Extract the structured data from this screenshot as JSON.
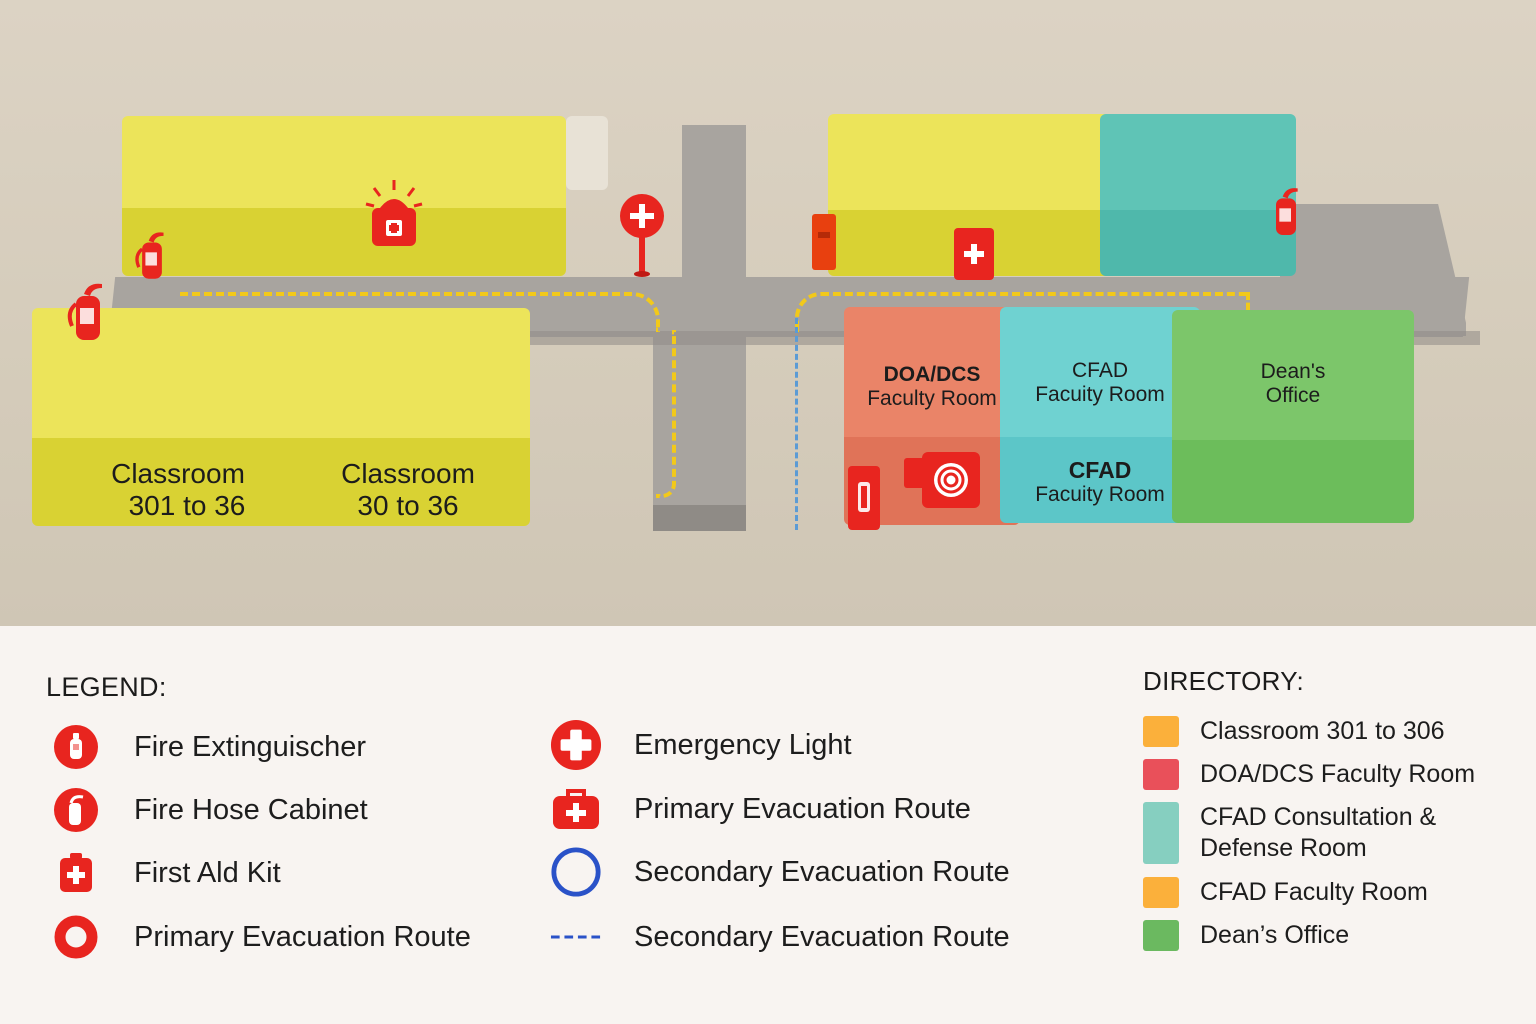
{
  "map": {
    "rooms": {
      "classroom_a": {
        "line1": "Classroom",
        "line2": "301 to 36"
      },
      "classroom_b": {
        "line1": "Classroom",
        "line2": "30 to 36"
      },
      "doa_dcs": {
        "line1": "DOA/DCS",
        "line2": "Faculty Room"
      },
      "cfad_upper": {
        "line1": "CFAD",
        "line2": "Facuity Room"
      },
      "cfad_lower": {
        "line1": "CFAD",
        "line2": "Facuity Room"
      },
      "deans": {
        "line1": "Dean's",
        "line2": "Office"
      }
    }
  },
  "legend": {
    "title": "LEGEND:",
    "items": [
      {
        "label": "Fire Extinguischer",
        "icon": "fire-extinguisher-icon"
      },
      {
        "label": "Fire Hose Cabinet",
        "icon": "fire-hose-cabinet-icon"
      },
      {
        "label": "First Ald Kit",
        "icon": "first-aid-kit-icon"
      },
      {
        "label": "Primary Evacuation  Route",
        "icon": "red-ring-icon"
      },
      {
        "label": "Emergency Light",
        "icon": "emergency-light-icon"
      },
      {
        "label": "Primary Evacuation  Route",
        "icon": "first-aid-case-icon"
      },
      {
        "label": "Secondary Evacuation Route",
        "icon": "blue-ring-icon"
      },
      {
        "label": "Secondary Evacuation Route",
        "icon": "blue-dashed-line-icon"
      }
    ]
  },
  "directory": {
    "title": "DIRECTORY:",
    "items": [
      {
        "label": "Classroom 301 to 306",
        "color": "#fbb03b"
      },
      {
        "label": "DOA/DCS Faculty Room",
        "color": "#e9505a"
      },
      {
        "label": "CFAD Consultation &\nDefense Room",
        "color": "#86cfc0"
      },
      {
        "label": "CFAD Faculty Room",
        "color": "#fbb03b"
      },
      {
        "label": "Dean’s Office",
        "color": "#6bb960"
      }
    ]
  },
  "colors": {
    "classroom": "#ece45a",
    "doa_dcs": "#e07358",
    "cfad": "#5cc6c8",
    "deans": "#6cbd5b",
    "safety_red": "#e8251f",
    "primary_route": "#f2c91a",
    "secondary_route": "#5b9bd5"
  }
}
